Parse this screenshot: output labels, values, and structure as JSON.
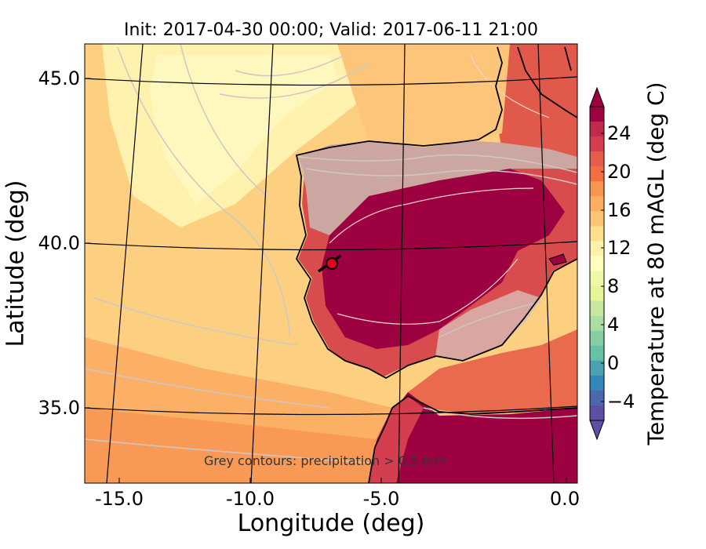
{
  "title": "Init: 2017-04-30 00:00; Valid: 2017-06-11 21:00",
  "axes": {
    "xlabel": "Longitude (deg)",
    "ylabel": "Latitude (deg)",
    "xticks": [
      "-15.0",
      "-10.0",
      "-5.0",
      "0.0"
    ],
    "yticks": [
      "45.0",
      "40.0",
      "35.0"
    ]
  },
  "colorbar": {
    "label": "Temperature at 80 mAGL (deg C)",
    "ticks": [
      "24",
      "20",
      "16",
      "12",
      "8",
      "4",
      "0",
      "−4"
    ],
    "colors": [
      "#9e0142",
      "#c2294a",
      "#d53e4f",
      "#e65c4b",
      "#f46d43",
      "#f8954f",
      "#fdae61",
      "#fdc574",
      "#fee08b",
      "#fff1a8",
      "#ffffbf",
      "#eef8a8",
      "#e6f598",
      "#c7e89e",
      "#abdda4",
      "#86cfa5",
      "#66c2a5",
      "#4ba0b1",
      "#3288bd",
      "#4b68ae",
      "#5e4fa2"
    ]
  },
  "annotation": "Grey contours: precipitation  > 0.5 mm",
  "marker": {
    "label": "station",
    "color": "#e8001c"
  }
}
